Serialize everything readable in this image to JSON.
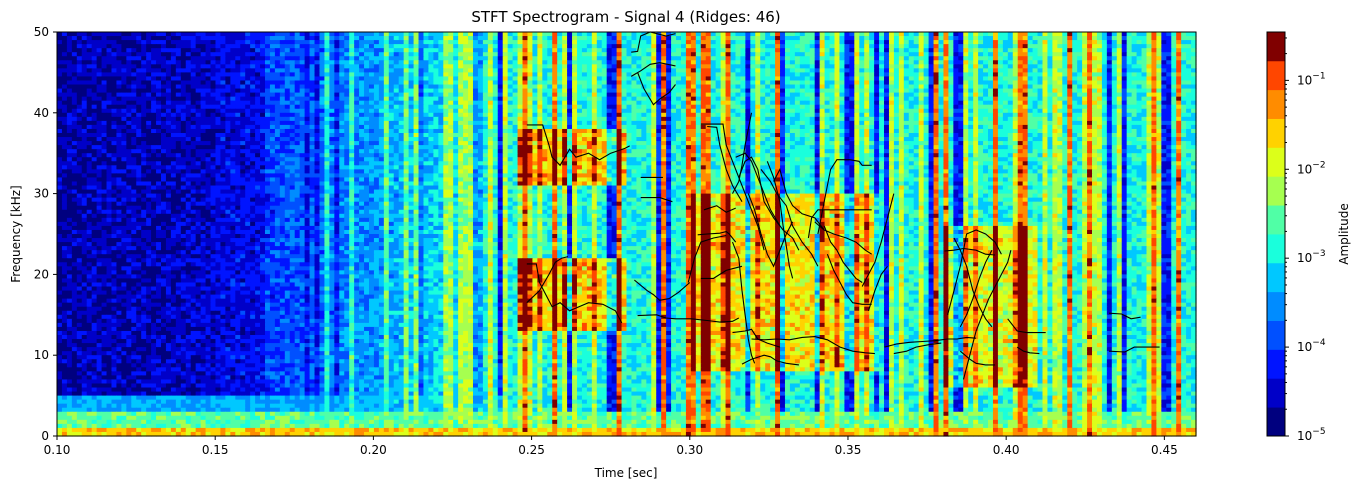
{
  "chart_data": {
    "type": "heatmap",
    "title": "STFT Spectrogram - Signal 4 (Ridges: 46)",
    "xlabel": "Time [sec]",
    "ylabel": "Frequency [kHz]",
    "xlim": [
      0.1,
      0.46
    ],
    "ylim": [
      0,
      50
    ],
    "x_ticks": [
      0.1,
      0.15,
      0.2,
      0.25,
      0.3,
      0.35,
      0.4,
      0.45
    ],
    "x_tick_labels": [
      "0.10",
      "0.15",
      "0.20",
      "0.25",
      "0.30",
      "0.35",
      "0.40",
      "0.45"
    ],
    "y_ticks": [
      0,
      10,
      20,
      30,
      40,
      50
    ],
    "y_tick_labels": [
      "0",
      "10",
      "20",
      "30",
      "40",
      "50"
    ],
    "colormap": "jet",
    "colorbar": {
      "label": "Amplitude",
      "scale": "log",
      "range": [
        1e-05,
        0.35
      ],
      "ticks": [
        1e-05,
        0.0001,
        0.001,
        0.01,
        0.1
      ],
      "tick_mantissa": [
        "10",
        "10",
        "10",
        "10",
        "10"
      ],
      "tick_exponents": [
        "−5",
        "−4",
        "−3",
        "−2",
        "−1"
      ],
      "levels": 14
    },
    "ridge_count": 46,
    "ridge_color": "#000000",
    "ridges": [
      [
        [
          0.2485,
          38.5
        ],
        [
          0.2535,
          38.5
        ],
        [
          0.2555,
          36.0
        ],
        [
          0.2565,
          34.5
        ],
        [
          0.259,
          33.5
        ],
        [
          0.262,
          35.5
        ],
        [
          0.264,
          34.5
        ],
        [
          0.268,
          35.0
        ],
        [
          0.2715,
          34.2
        ],
        [
          0.275,
          35.0
        ],
        [
          0.2795,
          35.6
        ],
        [
          0.281,
          35.9
        ]
      ],
      [
        [
          0.2485,
          21.3
        ],
        [
          0.2515,
          21.3
        ],
        [
          0.2525,
          19.0
        ],
        [
          0.2545,
          17.5
        ],
        [
          0.2565,
          16.0
        ],
        [
          0.259,
          16.5
        ],
        [
          0.262,
          15.5
        ],
        [
          0.265,
          16.0
        ],
        [
          0.268,
          16.5
        ],
        [
          0.2725,
          16.3
        ],
        [
          0.2765,
          15.5
        ],
        [
          0.2785,
          14.0
        ]
      ],
      [
        [
          0.2485,
          16.5
        ],
        [
          0.2525,
          18.0
        ],
        [
          0.2555,
          20.0
        ],
        [
          0.2575,
          21.5
        ],
        [
          0.2595,
          22.0
        ],
        [
          0.2615,
          22.2
        ]
      ],
      [
        [
          0.2815,
          47.5
        ],
        [
          0.2835,
          47.6
        ],
        [
          0.2845,
          49.5
        ],
        [
          0.2875,
          50.0
        ],
        [
          0.2925,
          49.5
        ],
        [
          0.2955,
          49.8
        ]
      ],
      [
        [
          0.2815,
          44.5
        ],
        [
          0.2845,
          45.2
        ],
        [
          0.2875,
          46.0
        ],
        [
          0.2905,
          46.2
        ],
        [
          0.2955,
          45.8
        ]
      ],
      [
        [
          0.2835,
          45.0
        ],
        [
          0.2855,
          43.0
        ],
        [
          0.2885,
          41.0
        ],
        [
          0.2905,
          41.7
        ],
        [
          0.2935,
          42.5
        ],
        [
          0.2955,
          43.5
        ]
      ],
      [
        [
          0.2845,
          32.0
        ],
        [
          0.2915,
          32.0
        ]
      ],
      [
        [
          0.2845,
          29.5
        ],
        [
          0.2905,
          29.5
        ],
        [
          0.2945,
          29.0
        ]
      ],
      [
        [
          0.2825,
          19.3
        ],
        [
          0.2865,
          18.0
        ],
        [
          0.2885,
          17.5
        ],
        [
          0.2905,
          16.8
        ],
        [
          0.2935,
          17.0
        ],
        [
          0.2965,
          17.8
        ],
        [
          0.3,
          19.0
        ]
      ],
      [
        [
          0.2835,
          14.9
        ],
        [
          0.2895,
          15.0
        ],
        [
          0.2925,
          14.6
        ],
        [
          0.2955,
          14.5
        ],
        [
          0.3005,
          14.5
        ],
        [
          0.3055,
          14.3
        ],
        [
          0.3095,
          14.1
        ],
        [
          0.3135,
          14.2
        ],
        [
          0.3155,
          14.6
        ]
      ],
      [
        [
          0.3035,
          38.6
        ],
        [
          0.3105,
          38.6
        ],
        [
          0.3115,
          36.0
        ],
        [
          0.3135,
          34.0
        ],
        [
          0.3155,
          32.0
        ],
        [
          0.3175,
          30.0
        ],
        [
          0.3195,
          28.0
        ],
        [
          0.3215,
          26.0
        ],
        [
          0.3235,
          23.0
        ]
      ],
      [
        [
          0.3055,
          38.3
        ],
        [
          0.3085,
          38.2
        ],
        [
          0.3095,
          36.0
        ],
        [
          0.3115,
          33.0
        ],
        [
          0.3135,
          31.0
        ],
        [
          0.3165,
          29.0
        ]
      ],
      [
        [
          0.3035,
          19.5
        ],
        [
          0.3075,
          19.5
        ],
        [
          0.3095,
          20.0
        ],
        [
          0.3115,
          20.5
        ],
        [
          0.3135,
          20.7
        ],
        [
          0.3165,
          21.0
        ]
      ],
      [
        [
          0.3045,
          28.0
        ],
        [
          0.3085,
          28.5
        ],
        [
          0.3115,
          27.7
        ],
        [
          0.3145,
          28.2
        ]
      ],
      [
        [
          0.3025,
          24.9
        ],
        [
          0.3055,
          25.0
        ],
        [
          0.3095,
          25.1
        ],
        [
          0.3115,
          25.3
        ],
        [
          0.3125,
          25.0
        ],
        [
          0.3145,
          24.0
        ]
      ],
      [
        [
          0.2995,
          19.0
        ],
        [
          0.3015,
          22.0
        ],
        [
          0.3035,
          24.0
        ],
        [
          0.3075,
          24.5
        ],
        [
          0.3115,
          24.8
        ]
      ],
      [
        [
          0.3135,
          30.0
        ],
        [
          0.3155,
          31.5
        ],
        [
          0.3165,
          33.5
        ],
        [
          0.3175,
          36.0
        ],
        [
          0.3185,
          38.0
        ],
        [
          0.3195,
          40.0
        ]
      ],
      [
        [
          0.3135,
          24.0
        ],
        [
          0.3155,
          22.0
        ],
        [
          0.3165,
          18.0
        ],
        [
          0.3175,
          15.0
        ],
        [
          0.3185,
          12.0
        ],
        [
          0.3195,
          10.0
        ],
        [
          0.3205,
          9.0
        ]
      ],
      [
        [
          0.3145,
          34.5
        ],
        [
          0.3175,
          35.0
        ],
        [
          0.3195,
          34.0
        ],
        [
          0.3215,
          32.0
        ],
        [
          0.3235,
          30.0
        ],
        [
          0.3255,
          28.0
        ],
        [
          0.3285,
          26.0
        ]
      ],
      [
        [
          0.3155,
          32.0
        ],
        [
          0.3175,
          34.0
        ],
        [
          0.3195,
          34.5
        ],
        [
          0.3215,
          33.0
        ],
        [
          0.3235,
          29.0
        ],
        [
          0.3265,
          27.0
        ],
        [
          0.3295,
          25.5
        ],
        [
          0.3325,
          24.5
        ],
        [
          0.3345,
          23.0
        ]
      ],
      [
        [
          0.3185,
          30.0
        ],
        [
          0.3205,
          28.0
        ],
        [
          0.3225,
          25.0
        ],
        [
          0.3245,
          22.5
        ],
        [
          0.3265,
          21.0
        ],
        [
          0.3285,
          23.0
        ],
        [
          0.3305,
          25.0
        ],
        [
          0.3325,
          26.5
        ]
      ],
      [
        [
          0.3225,
          33.0
        ],
        [
          0.3255,
          31.5
        ],
        [
          0.3275,
          30.0
        ],
        [
          0.3305,
          28.5
        ],
        [
          0.3325,
          26.0
        ],
        [
          0.3355,
          24.0
        ],
        [
          0.3385,
          22.5
        ],
        [
          0.3405,
          21.0
        ]
      ],
      [
        [
          0.3245,
          34.0
        ],
        [
          0.3265,
          32.0
        ],
        [
          0.3285,
          29.0
        ],
        [
          0.3295,
          26.0
        ],
        [
          0.3305,
          23.5
        ],
        [
          0.3315,
          21.0
        ],
        [
          0.3325,
          19.5
        ]
      ],
      [
        [
          0.3265,
          31.5
        ],
        [
          0.3285,
          33.0
        ],
        [
          0.3305,
          30.0
        ],
        [
          0.3325,
          28.5
        ],
        [
          0.3355,
          27.5
        ],
        [
          0.3395,
          27.0
        ],
        [
          0.3425,
          25.5
        ]
      ],
      [
        [
          0.3195,
          12.0
        ],
        [
          0.3235,
          11.9
        ],
        [
          0.3275,
          12.0
        ],
        [
          0.3315,
          11.9
        ],
        [
          0.3355,
          12.2
        ],
        [
          0.3395,
          12.3
        ],
        [
          0.3435,
          11.9
        ],
        [
          0.3475,
          11.0
        ],
        [
          0.3515,
          10.5
        ],
        [
          0.3555,
          10.3
        ],
        [
          0.3585,
          10.2
        ]
      ],
      [
        [
          0.3135,
          12.8
        ],
        [
          0.3175,
          13.0
        ],
        [
          0.3195,
          13.2
        ],
        [
          0.3215,
          12.0
        ],
        [
          0.3245,
          11.5
        ],
        [
          0.3285,
          11.0
        ]
      ],
      [
        [
          0.3165,
          8.9
        ],
        [
          0.3195,
          9.5
        ],
        [
          0.3235,
          10.0
        ],
        [
          0.3255,
          9.8
        ],
        [
          0.3275,
          9.3
        ],
        [
          0.3305,
          9.0
        ],
        [
          0.3345,
          8.8
        ]
      ],
      [
        [
          0.3375,
          24.5
        ],
        [
          0.3385,
          27.0
        ],
        [
          0.3405,
          28.0
        ],
        [
          0.3435,
          28.0
        ],
        [
          0.3475,
          28.0
        ],
        [
          0.3535,
          28.0
        ],
        [
          0.3575,
          28.0
        ]
      ],
      [
        [
          0.3395,
          26.5
        ],
        [
          0.3425,
          25.5
        ],
        [
          0.3455,
          25.0
        ],
        [
          0.3495,
          24.5
        ],
        [
          0.3525,
          24.0
        ],
        [
          0.3555,
          23.0
        ],
        [
          0.3575,
          22.5
        ]
      ],
      [
        [
          0.3405,
          25.0
        ],
        [
          0.3415,
          27.0
        ],
        [
          0.3425,
          29.0
        ],
        [
          0.3435,
          31.0
        ],
        [
          0.3445,
          33.0
        ],
        [
          0.3465,
          34.2
        ],
        [
          0.3505,
          34.2
        ],
        [
          0.3535,
          34.0
        ],
        [
          0.3545,
          33.5
        ],
        [
          0.3575,
          33.5
        ]
      ],
      [
        [
          0.3425,
          26.0
        ],
        [
          0.3445,
          24.0
        ],
        [
          0.3465,
          23.0
        ],
        [
          0.3485,
          21.5
        ],
        [
          0.3505,
          20.5
        ],
        [
          0.3525,
          19.5
        ],
        [
          0.3545,
          19.0
        ]
      ],
      [
        [
          0.3435,
          22.5
        ],
        [
          0.3455,
          20.5
        ],
        [
          0.3475,
          19.0
        ],
        [
          0.3495,
          17.5
        ],
        [
          0.3515,
          16.5
        ],
        [
          0.3545,
          16.3
        ],
        [
          0.3575,
          16.3
        ]
      ],
      [
        [
          0.3545,
          18.5
        ],
        [
          0.3565,
          20.0
        ],
        [
          0.3585,
          21.5
        ],
        [
          0.3605,
          24.0
        ],
        [
          0.3625,
          27.0
        ],
        [
          0.3645,
          30.0
        ]
      ],
      [
        [
          0.3565,
          15.5
        ],
        [
          0.3585,
          18.0
        ],
        [
          0.3605,
          20.0
        ],
        [
          0.3625,
          21.0
        ]
      ],
      [
        [
          0.3615,
          11.0
        ],
        [
          0.3655,
          11.4
        ],
        [
          0.3695,
          11.6
        ],
        [
          0.3735,
          11.7
        ],
        [
          0.3775,
          11.8
        ],
        [
          0.3815,
          12.0
        ],
        [
          0.3845,
          12.0
        ],
        [
          0.3875,
          12.2
        ],
        [
          0.3905,
          12.1
        ]
      ],
      [
        [
          0.3645,
          10.2
        ],
        [
          0.3685,
          10.5
        ],
        [
          0.3715,
          11.0
        ],
        [
          0.3755,
          11.3
        ],
        [
          0.3795,
          11.5
        ]
      ],
      [
        [
          0.3805,
          22.9
        ],
        [
          0.3835,
          23.0
        ],
        [
          0.3865,
          23.2
        ],
        [
          0.3905,
          23.0
        ],
        [
          0.3935,
          22.5
        ],
        [
          0.3965,
          22.4
        ]
      ],
      [
        [
          0.3815,
          15.0
        ],
        [
          0.3835,
          18.0
        ],
        [
          0.3855,
          21.0
        ],
        [
          0.3865,
          23.0
        ],
        [
          0.3875,
          25.0
        ],
        [
          0.3905,
          25.5
        ],
        [
          0.3935,
          25.0
        ],
        [
          0.3965,
          24.0
        ],
        [
          0.3985,
          22.5
        ]
      ],
      [
        [
          0.3835,
          24.5
        ],
        [
          0.3855,
          23.0
        ],
        [
          0.3875,
          21.0
        ],
        [
          0.3895,
          18.0
        ],
        [
          0.3915,
          16.0
        ],
        [
          0.3935,
          14.5
        ],
        [
          0.3955,
          13.5
        ]
      ],
      [
        [
          0.3855,
          13.5
        ],
        [
          0.3875,
          15.0
        ],
        [
          0.3895,
          17.0
        ],
        [
          0.3915,
          19.5
        ],
        [
          0.3935,
          21.5
        ],
        [
          0.3955,
          23.0
        ]
      ],
      [
        [
          0.3865,
          7.0
        ],
        [
          0.3885,
          10.0
        ],
        [
          0.3905,
          13.0
        ],
        [
          0.3925,
          15.0
        ],
        [
          0.3945,
          17.0
        ],
        [
          0.3965,
          18.5
        ],
        [
          0.3985,
          20.0
        ],
        [
          0.4005,
          21.5
        ],
        [
          0.4015,
          23.0
        ]
      ],
      [
        [
          0.3855,
          10.5
        ],
        [
          0.3885,
          9.5
        ],
        [
          0.3905,
          9.0
        ],
        [
          0.3935,
          8.8
        ],
        [
          0.3965,
          8.8
        ]
      ],
      [
        [
          0.4005,
          14.5
        ],
        [
          0.4035,
          13.0
        ],
        [
          0.4065,
          12.8
        ],
        [
          0.4095,
          12.8
        ],
        [
          0.4125,
          12.8
        ]
      ],
      [
        [
          0.4035,
          11.0
        ],
        [
          0.4055,
          10.5
        ],
        [
          0.4075,
          10.3
        ],
        [
          0.4105,
          10.2
        ]
      ],
      [
        [
          0.4325,
          15.2
        ],
        [
          0.4365,
          15.1
        ],
        [
          0.4395,
          14.5
        ],
        [
          0.4425,
          14.7
        ]
      ],
      [
        [
          0.4325,
          10.5
        ],
        [
          0.4375,
          10.4
        ],
        [
          0.4405,
          11.0
        ],
        [
          0.4445,
          11.0
        ],
        [
          0.4485,
          11.0
        ]
      ]
    ]
  }
}
